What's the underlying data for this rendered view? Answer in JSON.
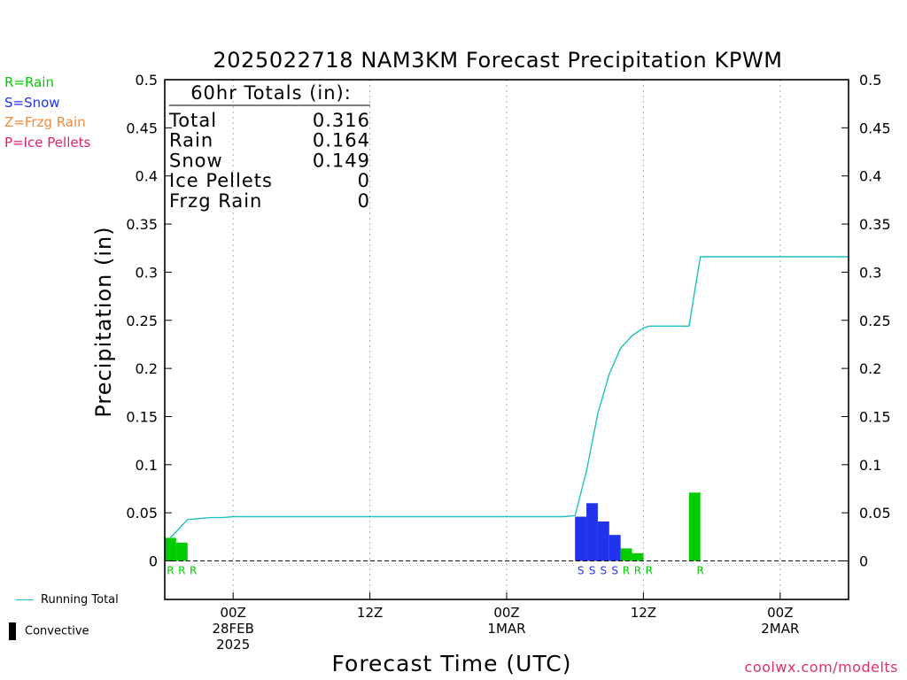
{
  "chart_data": {
    "type": "bar",
    "title": "2025022718 NAM3KM Forecast Precipitation KPWM",
    "ylabel": "Precipitation (in)",
    "xlabel": "Forecast Time (UTC)",
    "ylim": [
      -0.04,
      0.5
    ],
    "xlim_hours": [
      18,
      78
    ],
    "y_ticks": [
      0,
      0.05,
      0.1,
      0.15,
      0.2,
      0.25,
      0.3,
      0.35,
      0.4,
      0.45,
      0.5
    ],
    "y_tick_labels": [
      "0",
      "0.05",
      "0.1",
      "0.15",
      "0.2",
      "0.25",
      "0.3",
      "0.35",
      "0.4",
      "0.45",
      "0.5"
    ],
    "x_ticks": [
      {
        "hour": 24,
        "label": "00Z",
        "sub": [
          "28FEB",
          "2025"
        ]
      },
      {
        "hour": 36,
        "label": "12Z",
        "sub": []
      },
      {
        "hour": 48,
        "label": "00Z",
        "sub": [
          "1MAR"
        ]
      },
      {
        "hour": 60,
        "label": "12Z",
        "sub": []
      },
      {
        "hour": 72,
        "label": "00Z",
        "sub": [
          "2MAR"
        ]
      }
    ],
    "bars": [
      {
        "hour": 18.5,
        "value": 0.024,
        "type": "R"
      },
      {
        "hour": 19.5,
        "value": 0.019,
        "type": "R"
      },
      {
        "hour": 20.5,
        "value": 0.0,
        "type": "R"
      },
      {
        "hour": 54.5,
        "value": 0.046,
        "type": "S"
      },
      {
        "hour": 55.5,
        "value": 0.06,
        "type": "S"
      },
      {
        "hour": 56.5,
        "value": 0.041,
        "type": "S"
      },
      {
        "hour": 57.5,
        "value": 0.027,
        "type": "S"
      },
      {
        "hour": 58.5,
        "value": 0.013,
        "type": "R"
      },
      {
        "hour": 59.5,
        "value": 0.008,
        "type": "R"
      },
      {
        "hour": 60.5,
        "value": 0.0,
        "type": "R"
      },
      {
        "hour": 64.5,
        "value": 0.071,
        "type": "R"
      }
    ],
    "bar_marks": [
      {
        "hour": 18.5,
        "type": "R"
      },
      {
        "hour": 19.5,
        "type": "R"
      },
      {
        "hour": 20.5,
        "type": "R"
      },
      {
        "hour": 54.5,
        "type": "S"
      },
      {
        "hour": 55.5,
        "type": "S"
      },
      {
        "hour": 56.5,
        "type": "S"
      },
      {
        "hour": 57.5,
        "type": "S"
      },
      {
        "hour": 58.5,
        "type": "R"
      },
      {
        "hour": 59.5,
        "type": "R"
      },
      {
        "hour": 60.5,
        "type": "R"
      },
      {
        "hour": 65.0,
        "type": "R"
      }
    ],
    "running_total": [
      {
        "hour": 18.5,
        "value": 0.024
      },
      {
        "hour": 20,
        "value": 0.043
      },
      {
        "hour": 22,
        "value": 0.045
      },
      {
        "hour": 23,
        "value": 0.045
      },
      {
        "hour": 24,
        "value": 0.046
      },
      {
        "hour": 25,
        "value": 0.046
      },
      {
        "hour": 53,
        "value": 0.046
      },
      {
        "hour": 54,
        "value": 0.047
      },
      {
        "hour": 55,
        "value": 0.093
      },
      {
        "hour": 56,
        "value": 0.153
      },
      {
        "hour": 57,
        "value": 0.194
      },
      {
        "hour": 58,
        "value": 0.221
      },
      {
        "hour": 59,
        "value": 0.234
      },
      {
        "hour": 60,
        "value": 0.242
      },
      {
        "hour": 60.5,
        "value": 0.244
      },
      {
        "hour": 64,
        "value": 0.244
      },
      {
        "hour": 65,
        "value": 0.316
      },
      {
        "hour": 66,
        "value": 0.316
      },
      {
        "hour": 78,
        "value": 0.316
      }
    ],
    "totals_box": {
      "title": "60hr Totals (in):",
      "rows": [
        {
          "label": "Total",
          "value": "0.316"
        },
        {
          "label": "Rain",
          "value": "0.164"
        },
        {
          "label": "Snow",
          "value": "0.149"
        },
        {
          "label": "Ice Pellets",
          "value": "0"
        },
        {
          "label": "Frzg Rain",
          "value": "0"
        }
      ]
    },
    "type_legend": [
      {
        "code": "R",
        "text": "R=Rain",
        "color": "#00cc00"
      },
      {
        "code": "S",
        "text": "S=Snow",
        "color": "#2233ee"
      },
      {
        "code": "Z",
        "text": "Z=Frzg Rain",
        "color": "#f08a3c"
      },
      {
        "code": "P",
        "text": "P=Ice Pellets",
        "color": "#e0206f"
      }
    ],
    "series_legend": {
      "running_total": "Running Total",
      "convective": "Convective"
    },
    "colors": {
      "rain": "#00cc00",
      "snow": "#2233ee",
      "running_total": "#20c0c0",
      "grid": "#aaaaaa"
    }
  },
  "credit": "coolwx.com/modelts"
}
